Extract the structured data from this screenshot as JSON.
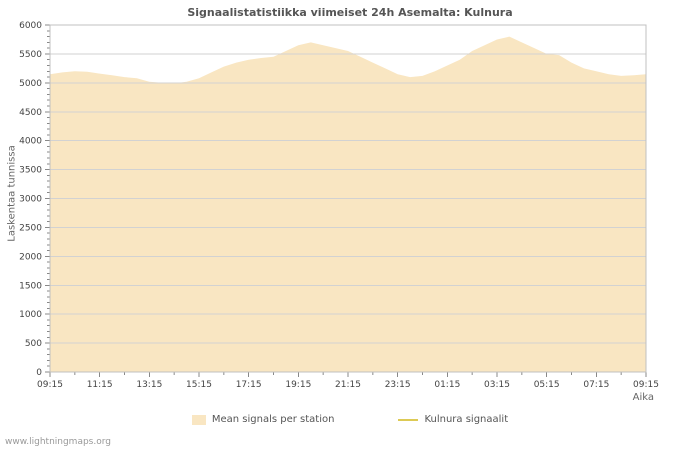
{
  "page": {
    "footer_link": "www.lightningmaps.org"
  },
  "chart_data": {
    "type": "area",
    "title": "Signaalistatistiikka viimeiset 24h Asemalta: Kulnura",
    "xlabel": "Aika",
    "ylabel": "Laskentaa tunnissa",
    "ylim": [
      0,
      6000
    ],
    "ytick_step": 500,
    "ytick_minor_step": 100,
    "grid": true,
    "legend_position": "bottom",
    "x_tick_labels": [
      "09:15",
      "11:15",
      "13:15",
      "15:15",
      "17:15",
      "19:15",
      "21:15",
      "23:15",
      "01:15",
      "03:15",
      "05:15",
      "07:15",
      "09:15"
    ],
    "x_minor_divisions": 24,
    "series": [
      {
        "name": "Mean signals per station",
        "type": "area",
        "color": "#f9e6c2",
        "values": [
          5150,
          5180,
          5200,
          5190,
          5160,
          5130,
          5100,
          5080,
          5020,
          5000,
          4990,
          5020,
          5080,
          5180,
          5280,
          5350,
          5400,
          5430,
          5450,
          5550,
          5650,
          5700,
          5650,
          5600,
          5550,
          5450,
          5350,
          5250,
          5150,
          5100,
          5120,
          5200,
          5300,
          5400,
          5550,
          5650,
          5750,
          5800,
          5700,
          5600,
          5500,
          5480,
          5350,
          5250,
          5200,
          5150,
          5120,
          5130,
          5150
        ]
      },
      {
        "name": "Kulnura signaalit",
        "type": "line",
        "color": "#ddca55",
        "values": []
      }
    ]
  }
}
